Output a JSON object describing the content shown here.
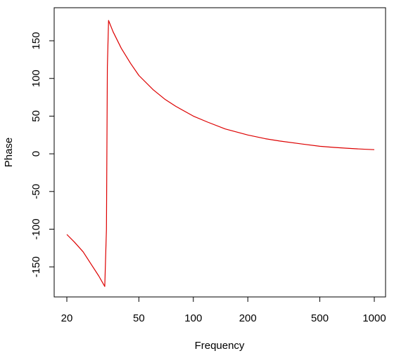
{
  "chart_data": {
    "type": "line",
    "title": "",
    "xlabel": "Frequency",
    "ylabel": "Phase",
    "xscale": "log",
    "xlim": [
      20,
      1000
    ],
    "ylim": [
      -175,
      178
    ],
    "xticks": [
      20,
      50,
      100,
      200,
      500,
      1000
    ],
    "xtick_labels": [
      "20",
      "50",
      "100",
      "200",
      "500",
      "1000"
    ],
    "yticks": [
      -150,
      -100,
      -50,
      0,
      50,
      100,
      150
    ],
    "ytick_labels": [
      "-150",
      "-100",
      "-50",
      "0",
      "50",
      "100",
      "150"
    ],
    "grid": false,
    "legend": "none",
    "line_color": "#dd0000",
    "series": [
      {
        "x": [
          20,
          22,
          24.6,
          27,
          30,
          32.4,
          33.1,
          33.5,
          34,
          36,
          40,
          45,
          50,
          60,
          70,
          80,
          100,
          120,
          150,
          200,
          250,
          300,
          400,
          500,
          600,
          700,
          800,
          900,
          1000
        ],
        "y": [
          -107,
          -117,
          -130,
          -145,
          -162,
          -176,
          -100,
          115,
          177,
          162,
          140,
          120,
          104,
          85,
          72,
          63,
          50,
          42,
          33,
          25,
          20,
          17,
          13,
          10,
          8.5,
          7.5,
          6.6,
          6,
          5.5
        ]
      }
    ]
  }
}
